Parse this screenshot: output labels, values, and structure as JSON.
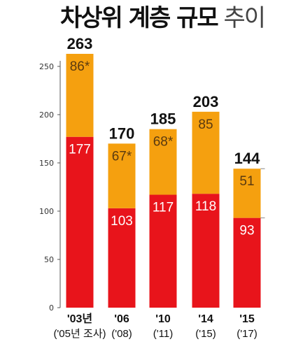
{
  "title": {
    "main": "차상위 계층 규모",
    "suffix": "추이"
  },
  "chart_data": {
    "type": "bar",
    "stacked": true,
    "categories": [
      "'03년",
      "'06",
      "'10",
      "'14",
      "'15"
    ],
    "sub_labels": [
      "('05년 조사)",
      "('08)",
      "('11)",
      "('15)",
      "('17)"
    ],
    "series": [
      {
        "values": [
          177,
          103,
          117,
          118,
          93
        ],
        "color": "#e8141b",
        "label_color": "#ffffff",
        "labels": [
          "177",
          "103",
          "117",
          "118",
          "93"
        ]
      },
      {
        "values": [
          86,
          67,
          68,
          85,
          51
        ],
        "color": "#f5a00f",
        "label_color": "#5a3a10",
        "labels": [
          "86*",
          "67*",
          "68*",
          "85",
          "51"
        ]
      }
    ],
    "totals": [
      "263",
      "170",
      "185",
      "203",
      "144"
    ],
    "ylim": [
      0,
      263
    ],
    "yticks": [
      0,
      50,
      100,
      150,
      200,
      250
    ],
    "ytick_labels": [
      "0",
      "50",
      "100",
      "150",
      "200",
      "250"
    ],
    "grid": false,
    "legend": "none"
  }
}
